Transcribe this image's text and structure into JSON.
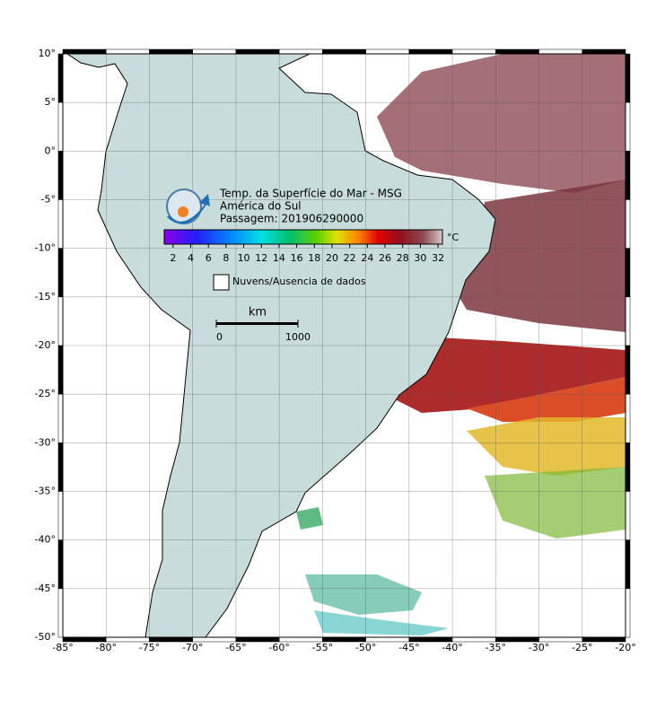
{
  "map": {
    "title_lines": [
      "Temp. da Superfície do Mar - MSG",
      "América do Sul",
      "Passagem: 201906290000"
    ],
    "colorbar": {
      "unit": "°C",
      "lim": [
        1,
        32.5
      ],
      "ticks": [
        2,
        4,
        6,
        8,
        10,
        12,
        14,
        16,
        18,
        20,
        22,
        24,
        26,
        28,
        30,
        32
      ]
    },
    "legend": "Nuvens/Ausencia de dados",
    "scale_bar": {
      "unit": "km",
      "ticks": [
        0,
        1000
      ]
    },
    "lonlim": [
      -85,
      -20
    ],
    "latlim": [
      -50,
      10
    ],
    "grid": true,
    "lon_ticks": [
      {
        "value": -85,
        "label": "-85°"
      },
      {
        "value": -80,
        "label": "-80°"
      },
      {
        "value": -75,
        "label": "-75°"
      },
      {
        "value": -70,
        "label": "-70°"
      },
      {
        "value": -65,
        "label": "-65°"
      },
      {
        "value": -60,
        "label": "-60°"
      },
      {
        "value": -55,
        "label": "-55°"
      },
      {
        "value": -50,
        "label": "-50°"
      },
      {
        "value": -45,
        "label": "-45°"
      },
      {
        "value": -40,
        "label": "-40°"
      },
      {
        "value": -35,
        "label": "-35°"
      },
      {
        "value": -30,
        "label": "-30°"
      },
      {
        "value": -25,
        "label": "-25°"
      },
      {
        "value": -20,
        "label": "-20°"
      }
    ],
    "lat_ticks": [
      {
        "value": 10,
        "label": "10°"
      },
      {
        "value": 5,
        "label": "5°"
      },
      {
        "value": 0,
        "label": "0°"
      },
      {
        "value": -5,
        "label": "-5°"
      },
      {
        "value": -10,
        "label": "-10°"
      },
      {
        "value": -15,
        "label": "-15°"
      },
      {
        "value": -20,
        "label": "-20°"
      },
      {
        "value": -25,
        "label": "-25°"
      },
      {
        "value": -30,
        "label": "-30°"
      },
      {
        "value": -35,
        "label": "-35°"
      },
      {
        "value": -40,
        "label": "-40°"
      },
      {
        "value": -45,
        "label": "-45°"
      },
      {
        "value": -50,
        "label": "-50°"
      }
    ]
  }
}
